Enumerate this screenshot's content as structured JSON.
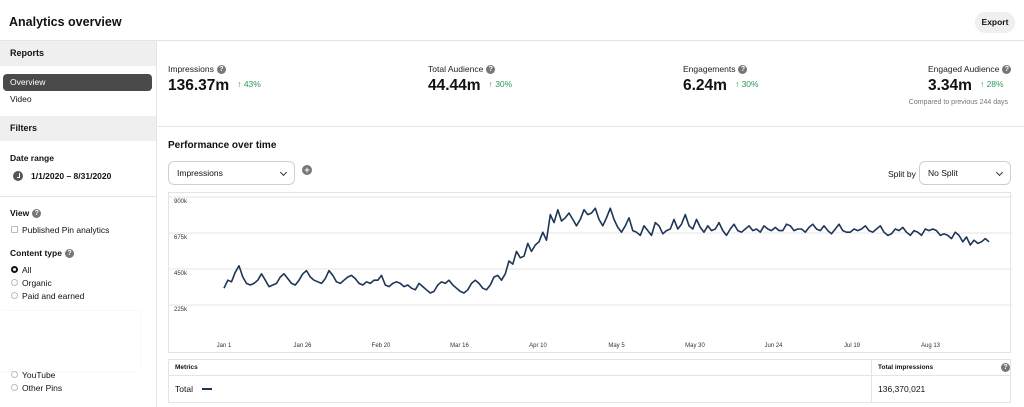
{
  "app": {
    "title": "Analytics overview",
    "export_label": "Export"
  },
  "sidebar": {
    "reports_heading": "Reports",
    "nav": [
      {
        "label": "Overview",
        "active": true
      },
      {
        "label": "Video",
        "active": false
      }
    ],
    "filters_heading": "Filters",
    "date_range": {
      "label": "Date range",
      "value": "1/1/2020 – 8/31/2020"
    },
    "view": {
      "label": "View",
      "option": "Published Pin analytics"
    },
    "content_type": {
      "label": "Content type",
      "options": [
        {
          "label": "All",
          "selected": true
        },
        {
          "label": "Organic",
          "selected": false
        },
        {
          "label": "Paid and earned",
          "selected": false
        }
      ]
    },
    "source_options": [
      {
        "label": "YouTube"
      },
      {
        "label": "Other Pins"
      }
    ]
  },
  "metrics": [
    {
      "label": "Impressions",
      "value": "136.37m",
      "delta": "43%"
    },
    {
      "label": "Total Audience",
      "value": "44.44m",
      "delta": "30%"
    },
    {
      "label": "Engagements",
      "value": "6.24m",
      "delta": "30%"
    },
    {
      "label": "Engaged Audience",
      "value": "3.34m",
      "delta": "28%"
    }
  ],
  "compare_note": "Compared to previous 244 days",
  "performance": {
    "title": "Performance over time",
    "metric_select": "Impressions",
    "split_label": "Split by",
    "split_select": "No Split"
  },
  "colors": {
    "accent": "#2a9a5b",
    "series": "#1d3557",
    "active_nav": "#4a4a4a"
  },
  "chart_data": {
    "type": "line",
    "x_ticks": [
      "Jan 1",
      "Jan 26",
      "Feb 20",
      "Mar 16",
      "Apr 10",
      "May 5",
      "May 30",
      "Jun 24",
      "Jul 19",
      "Aug 13"
    ],
    "y_ticks": [
      "900k",
      "675k",
      "450k",
      "225k"
    ],
    "ylim": [
      0,
      900000
    ],
    "grid": true,
    "series": [
      {
        "name": "Total",
        "values": [
          330000,
          380000,
          370000,
          430000,
          470000,
          400000,
          360000,
          350000,
          360000,
          380000,
          420000,
          380000,
          340000,
          350000,
          360000,
          400000,
          420000,
          390000,
          360000,
          350000,
          380000,
          420000,
          440000,
          400000,
          380000,
          370000,
          360000,
          390000,
          440000,
          410000,
          370000,
          360000,
          380000,
          400000,
          410000,
          390000,
          360000,
          350000,
          370000,
          360000,
          380000,
          380000,
          410000,
          350000,
          340000,
          360000,
          370000,
          360000,
          340000,
          350000,
          330000,
          320000,
          360000,
          340000,
          320000,
          300000,
          310000,
          350000,
          370000,
          360000,
          380000,
          350000,
          330000,
          310000,
          300000,
          320000,
          360000,
          380000,
          360000,
          330000,
          320000,
          350000,
          400000,
          410000,
          380000,
          420000,
          500000,
          480000,
          560000,
          520000,
          530000,
          610000,
          560000,
          600000,
          620000,
          680000,
          630000,
          790000,
          740000,
          820000,
          750000,
          770000,
          800000,
          760000,
          720000,
          760000,
          820000,
          790000,
          800000,
          830000,
          760000,
          720000,
          770000,
          830000,
          760000,
          710000,
          680000,
          720000,
          770000,
          690000,
          680000,
          660000,
          720000,
          690000,
          660000,
          740000,
          720000,
          670000,
          690000,
          700000,
          760000,
          700000,
          730000,
          790000,
          720000,
          700000,
          760000,
          710000,
          680000,
          720000,
          690000,
          700000,
          740000,
          690000,
          660000,
          700000,
          730000,
          690000,
          680000,
          700000,
          720000,
          690000,
          700000,
          680000,
          720000,
          700000,
          690000,
          710000,
          690000,
          690000,
          730000,
          720000,
          690000,
          700000,
          700000,
          680000,
          710000,
          730000,
          700000,
          690000,
          720000,
          690000,
          670000,
          700000,
          730000,
          690000,
          680000,
          680000,
          700000,
          690000,
          700000,
          720000,
          690000,
          680000,
          700000,
          720000,
          680000,
          660000,
          670000,
          700000,
          690000,
          710000,
          680000,
          660000,
          690000,
          680000,
          660000,
          700000,
          690000,
          700000,
          690000,
          660000,
          670000,
          660000,
          640000,
          680000,
          660000,
          620000,
          650000,
          600000,
          630000,
          610000,
          620000,
          640000,
          620000
        ]
      }
    ]
  },
  "table": {
    "metrics_header": "Metrics",
    "total_header": "Total impressions",
    "row_label": "Total",
    "row_value": "136,370,021"
  }
}
